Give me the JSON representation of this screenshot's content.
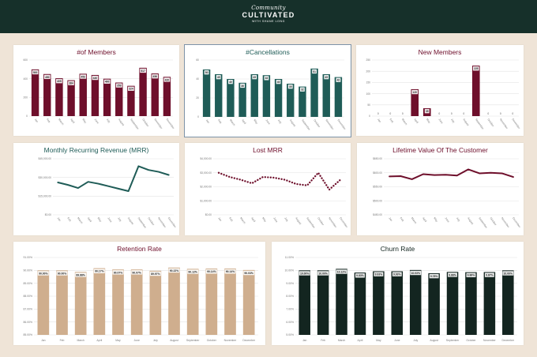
{
  "brand": {
    "script": "Community",
    "name": "CULTIVATED",
    "tagline": "WITH SHANE LONG"
  },
  "colors": {
    "maroon": "#6e0f2b",
    "teal": "#1f5c57",
    "tan": "#cfae8e",
    "dark": "#132520",
    "grid": "#e3e3e3",
    "axis": "#777777"
  },
  "chart_data": [
    {
      "type": "bar",
      "title": "#of Members",
      "categories": [
        "Jan",
        "Feb",
        "March",
        "April",
        "May",
        "June",
        "July",
        "August",
        "September",
        "October",
        "November",
        "December"
      ],
      "values": [
        500,
        450,
        405,
        384,
        453,
        440,
        400,
        359,
        324,
        517,
        456,
        420
      ],
      "data_labels": [
        "500",
        "450",
        "405",
        "384",
        "453",
        "440",
        "400",
        "359",
        "324",
        "517",
        "456",
        "420"
      ],
      "ylim": [
        0,
        600
      ],
      "yticks": [
        "0",
        "200",
        "400",
        "600"
      ],
      "color": "#6e0f2b"
    },
    {
      "type": "bar",
      "title": "#Cancellations",
      "categories": [
        "Jan",
        "Feb",
        "March",
        "April",
        "May",
        "June",
        "July",
        "August",
        "September",
        "October",
        "November",
        "December"
      ],
      "values": [
        50,
        45,
        40,
        36,
        45,
        44,
        40,
        35,
        32,
        51,
        45,
        42
      ],
      "data_labels": [
        "50",
        "45",
        "40",
        "36",
        "45",
        "44",
        "40",
        "35",
        "32",
        "51",
        "45",
        "42"
      ],
      "ylim": [
        0,
        60
      ],
      "yticks": [
        "0",
        "20",
        "40",
        "60"
      ],
      "color": "#1f5c57"
    },
    {
      "type": "bar",
      "title": "New Members",
      "categories": [
        "Jan",
        "Feb",
        "March",
        "April",
        "May",
        "June",
        "July",
        "August",
        "September",
        "October",
        "November",
        "December"
      ],
      "values": [
        0,
        0,
        0,
        120,
        35,
        0,
        0,
        0,
        225,
        0,
        0,
        0
      ],
      "data_labels": [
        "0",
        "0",
        "0",
        "120",
        "35",
        "0",
        "0",
        "0",
        "225",
        "0",
        "0",
        "0"
      ],
      "ylim": [
        0,
        250
      ],
      "yticks": [
        "0",
        "50",
        "100",
        "150",
        "200",
        "250"
      ],
      "color": "#6e0f2b"
    },
    {
      "type": "line",
      "title": "Monthly Recurring Revenue (MRR)",
      "categories": [
        "Jan",
        "Feb",
        "March",
        "April",
        "May",
        "June",
        "July",
        "August",
        "September",
        "October",
        "November",
        "December"
      ],
      "values": [
        26000,
        24000,
        21500,
        26500,
        25000,
        23000,
        21000,
        19000,
        39000,
        36000,
        34500,
        32000
      ],
      "ylim": [
        0,
        45000
      ],
      "yticks": [
        "$0.00",
        "$15,000.00",
        "$30,000.00",
        "$45,000.00"
      ],
      "color": "#1f5c57",
      "style": "solid"
    },
    {
      "type": "line",
      "title": "Lost MRR",
      "categories": [
        "Jan",
        "Feb",
        "March",
        "April",
        "May",
        "June",
        "July",
        "August",
        "September",
        "October",
        "November",
        "December"
      ],
      "values": [
        3000,
        2700,
        2500,
        2250,
        2700,
        2650,
        2500,
        2200,
        2100,
        3000,
        1800,
        2500
      ],
      "ylim": [
        0,
        4000
      ],
      "yticks": [
        "$0.00",
        "$1,000.00",
        "$2,000.00",
        "$3,000.00",
        "$4,000.00"
      ],
      "color": "#6e0f2b",
      "style": "dotted"
    },
    {
      "type": "line",
      "title": "Lifetime Value Of The Customer",
      "categories": [
        "Jan",
        "Feb",
        "March",
        "April",
        "May",
        "June",
        "July",
        "August",
        "September",
        "October",
        "November",
        "December"
      ],
      "values": [
        587,
        588,
        577,
        595,
        592,
        593,
        590,
        612,
        598,
        600,
        598,
        585
      ],
      "ylim": [
        450,
        650
      ],
      "yticks": [
        "$450.00",
        "$500.00",
        "$550.00",
        "$600.00",
        "$650.00"
      ],
      "color": "#6e0f2b",
      "style": "solid"
    },
    {
      "type": "bar",
      "title": "Retention Rate",
      "categories": [
        "Jan",
        "Feb",
        "March",
        "April",
        "May",
        "June",
        "July",
        "August",
        "September",
        "October",
        "November",
        "December"
      ],
      "values": [
        90.0,
        90.0,
        89.88,
        90.17,
        90.07,
        90.07,
        89.97,
        90.22,
        90.12,
        90.14,
        90.14,
        90.03
      ],
      "data_labels": [
        "90.00%",
        "90.00%",
        "89.88%",
        "90.17%",
        "90.07%",
        "90.07%",
        "89.97%",
        "90.22%",
        "90.12%",
        "90.14%",
        "90.14%",
        "90.03%"
      ],
      "ylim": [
        85.0,
        91.0
      ],
      "yticks": [
        "85.00%",
        "86.00%",
        "87.00%",
        "88.00%",
        "89.00%",
        "90.00%",
        "91.00%"
      ],
      "color": "#cfae8e"
    },
    {
      "type": "bar",
      "title": "Churn Rate",
      "categories": [
        "Jan",
        "Feb",
        "March",
        "April",
        "May",
        "June",
        "July",
        "August",
        "September",
        "October",
        "November",
        "December"
      ],
      "values": [
        10.0,
        10.0,
        10.12,
        9.83,
        9.93,
        9.93,
        10.03,
        9.78,
        9.88,
        9.86,
        9.87,
        10.0
      ],
      "data_labels": [
        "10.00%",
        "10.00%",
        "10.12%",
        "9.83%",
        "9.93%",
        "9.93%",
        "10.03%",
        "9.78%",
        "9.88%",
        "9.86%",
        "9.87%",
        "10.00%"
      ],
      "ylim": [
        5.0,
        11.0
      ],
      "yticks": [
        "5.00%",
        "6.00%",
        "7.00%",
        "8.00%",
        "9.00%",
        "10.00%",
        "11.00%"
      ],
      "color": "#132520"
    }
  ]
}
